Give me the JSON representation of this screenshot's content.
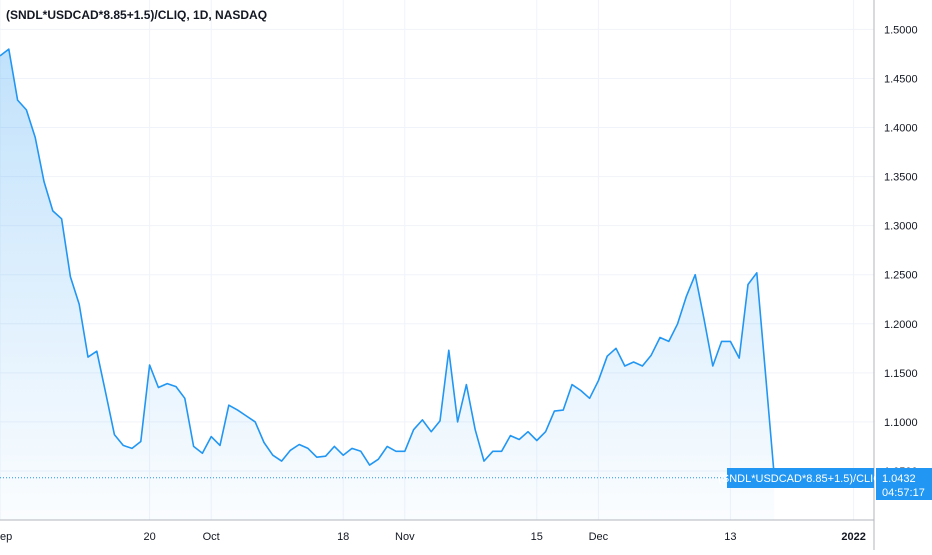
{
  "chart_data": {
    "type": "area",
    "title": "(SNDL*USDCAD*8.85+1.5)/CLIQ, 1D, NASDAQ",
    "series_label": "(SNDL*USDCAD*8.85+1.5)/CLIQ",
    "last_value": "1.0432",
    "countdown": "04:57:17",
    "ylim": [
      1.0,
      1.53
    ],
    "y_ticks": [
      "1.5000",
      "1.4500",
      "1.4000",
      "1.3500",
      "1.3000",
      "1.2500",
      "1.2000",
      "1.1500",
      "1.1000",
      "1.0500"
    ],
    "y_tick_values": [
      1.5,
      1.45,
      1.4,
      1.35,
      1.3,
      1.25,
      1.2,
      1.15,
      1.1,
      1.05
    ],
    "x_ticks": [
      "ep",
      "20",
      "Oct",
      "18",
      "Nov",
      "15",
      "Dec",
      "13",
      "2022",
      "13"
    ],
    "x_tick_index": [
      0,
      17,
      24,
      39,
      46,
      61,
      68,
      83,
      97,
      108
    ],
    "bold_x_tick": "2022",
    "grid": true,
    "colors": {
      "line": "#2196f3",
      "label_bg": "#2196f3",
      "axis_text": "#131722",
      "grid": "#f0f3fa"
    },
    "values": [
      1.473,
      1.48,
      1.428,
      1.418,
      1.39,
      1.345,
      1.315,
      1.307,
      1.248,
      1.22,
      1.166,
      1.172,
      1.13,
      1.087,
      1.076,
      1.073,
      1.08,
      1.158,
      1.135,
      1.139,
      1.136,
      1.124,
      1.075,
      1.068,
      1.085,
      1.076,
      1.117,
      1.112,
      1.106,
      1.1,
      1.079,
      1.066,
      1.06,
      1.071,
      1.077,
      1.073,
      1.064,
      1.065,
      1.075,
      1.066,
      1.073,
      1.07,
      1.056,
      1.062,
      1.075,
      1.07,
      1.07,
      1.092,
      1.102,
      1.09,
      1.101,
      1.173,
      1.1,
      1.138,
      1.092,
      1.06,
      1.07,
      1.07,
      1.086,
      1.082,
      1.09,
      1.081,
      1.09,
      1.111,
      1.112,
      1.138,
      1.132,
      1.124,
      1.142,
      1.167,
      1.175,
      1.157,
      1.161,
      1.157,
      1.168,
      1.186,
      1.182,
      1.2,
      1.228,
      1.25,
      1.205,
      1.157,
      1.182,
      1.182,
      1.165,
      1.24,
      1.252,
      1.148,
      1.043
    ]
  }
}
